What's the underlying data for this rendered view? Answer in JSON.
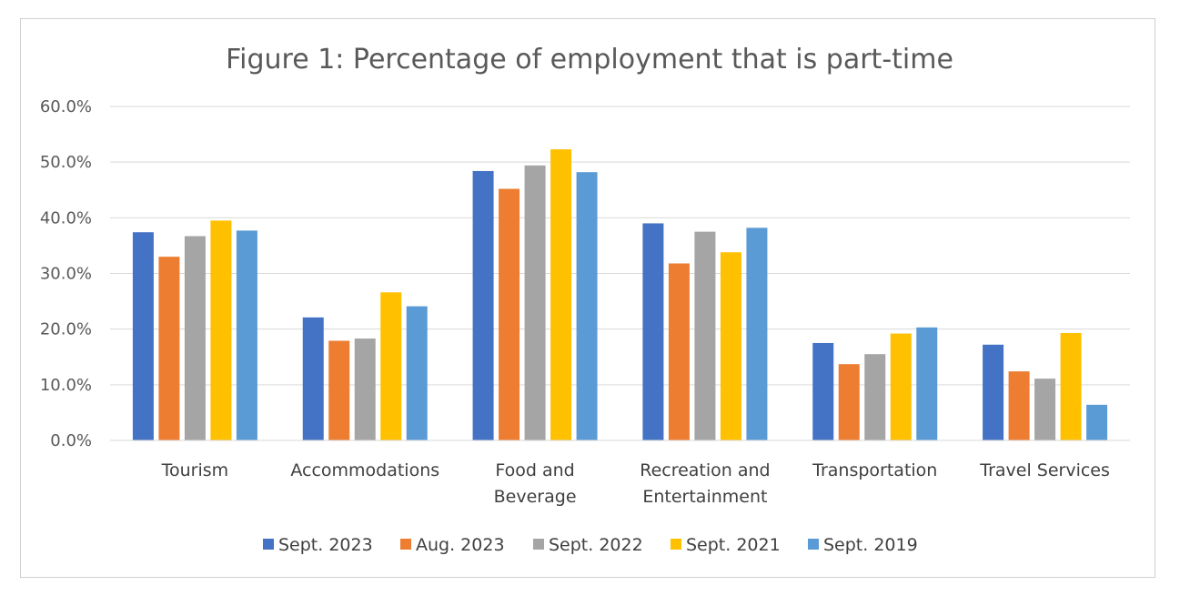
{
  "chart_data": {
    "type": "bar",
    "title": "Figure 1: Percentage of employment that is part-time",
    "categories": [
      [
        "Tourism"
      ],
      [
        "Accommodations"
      ],
      [
        "Food and",
        "Beverage"
      ],
      [
        "Recreation and",
        "Entertainment"
      ],
      [
        "Transportation"
      ],
      [
        "Travel Services"
      ]
    ],
    "series": [
      {
        "name": "Sept. 2023",
        "color": "#4472C4",
        "values": [
          37.4,
          22.1,
          48.4,
          39.0,
          17.5,
          17.2
        ]
      },
      {
        "name": "Aug. 2023",
        "color": "#ED7D31",
        "values": [
          33.0,
          17.9,
          45.2,
          31.8,
          13.7,
          12.4
        ]
      },
      {
        "name": "Sept. 2022",
        "color": "#A5A5A5",
        "values": [
          36.7,
          18.3,
          49.4,
          37.5,
          15.5,
          11.1
        ]
      },
      {
        "name": "Sept. 2021",
        "color": "#FFC000",
        "values": [
          39.5,
          26.6,
          52.3,
          33.8,
          19.2,
          19.3
        ]
      },
      {
        "name": "Sept. 2019",
        "color": "#5B9BD5",
        "values": [
          37.7,
          24.1,
          48.2,
          38.2,
          20.3,
          6.4
        ]
      }
    ],
    "yticks": [
      "0.0%",
      "10.0%",
      "20.0%",
      "30.0%",
      "40.0%",
      "50.0%",
      "60.0%"
    ],
    "ylim": [
      0,
      60
    ],
    "grid": true,
    "legend": "bottom",
    "xlabel": "",
    "ylabel": ""
  }
}
